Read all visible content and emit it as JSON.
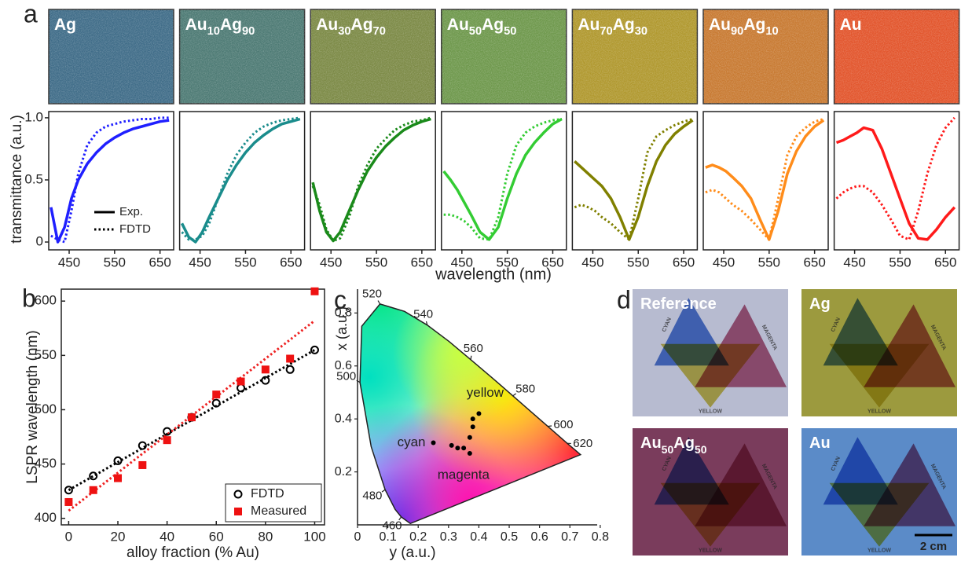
{
  "panel_labels": [
    "a",
    "b",
    "c",
    "d"
  ],
  "swatches": [
    {
      "label": "Ag",
      "color": "#3f6c88"
    },
    {
      "label": "Au10Ag90",
      "color": "#4d7a74"
    },
    {
      "label": "Au30Ag70",
      "color": "#7c8a46"
    },
    {
      "label": "Au50Ag50",
      "color": "#6e984c"
    },
    {
      "label": "Au70Ag30",
      "color": "#b0982e"
    },
    {
      "label": "Au90Ag10",
      "color": "#c87a32"
    },
    {
      "label": "Au",
      "color": "#e2552c"
    }
  ],
  "chart_data": [
    {
      "type": "line",
      "x": [
        410,
        425,
        440,
        455,
        470,
        490,
        510,
        530,
        550,
        570,
        590,
        610,
        630,
        650,
        670
      ],
      "xlim": [
        405,
        680
      ],
      "xticks": [
        450,
        550,
        650
      ],
      "ylim": [
        -0.063,
        1.05
      ],
      "yticks": [
        0,
        0.5,
        {
          "value": 1,
          "label": "1.0"
        }
      ],
      "legend": "lower right",
      "xlabel": "wavelength (nm)",
      "ylabel": "transmittance (a.u.)",
      "series": [
        {
          "name": "Exp.",
          "color": "#1f1fff",
          "style": "solid",
          "values": [
            0.28,
            0.0,
            0.12,
            0.35,
            0.5,
            0.63,
            0.72,
            0.79,
            0.84,
            0.88,
            0.91,
            0.93,
            0.95,
            0.97,
            0.98
          ]
        },
        {
          "name": "FDTD",
          "color": "#1f1fff",
          "style": "dotted",
          "values": [
            0.05,
            0.02,
            0.0,
            0.25,
            0.55,
            0.78,
            0.88,
            0.93,
            0.95,
            0.97,
            0.98,
            0.99,
            0.99,
            1.0,
            1.0
          ]
        }
      ]
    },
    {
      "type": "line",
      "x": [
        410,
        425,
        440,
        455,
        470,
        490,
        510,
        530,
        550,
        570,
        590,
        610,
        630,
        650,
        670
      ],
      "xlim": [
        405,
        680
      ],
      "xticks": [
        450,
        550,
        650
      ],
      "ylim": [
        -0.063,
        1.05
      ],
      "series": [
        {
          "color": "#1a8c8c",
          "style": "solid",
          "values": [
            0.15,
            0.04,
            0.0,
            0.08,
            0.2,
            0.35,
            0.5,
            0.62,
            0.72,
            0.8,
            0.86,
            0.91,
            0.95,
            0.97,
            0.99
          ]
        },
        {
          "color": "#1a8c8c",
          "style": "dotted",
          "values": [
            0.08,
            0.02,
            0.02,
            0.05,
            0.15,
            0.35,
            0.55,
            0.7,
            0.8,
            0.88,
            0.93,
            0.96,
            0.98,
            0.99,
            1.0
          ]
        }
      ]
    },
    {
      "type": "line",
      "x": [
        410,
        425,
        440,
        455,
        470,
        490,
        510,
        530,
        550,
        570,
        590,
        610,
        630,
        650,
        670
      ],
      "xlim": [
        405,
        680
      ],
      "xticks": [
        450,
        550,
        650
      ],
      "ylim": [
        -0.063,
        1.05
      ],
      "series": [
        {
          "color": "#1a8a1a",
          "style": "solid",
          "values": [
            0.48,
            0.25,
            0.08,
            0.01,
            0.08,
            0.25,
            0.42,
            0.57,
            0.68,
            0.77,
            0.84,
            0.9,
            0.94,
            0.97,
            0.99
          ]
        },
        {
          "color": "#1a8a1a",
          "style": "dotted",
          "values": [
            0.45,
            0.3,
            0.1,
            0.01,
            0.03,
            0.2,
            0.45,
            0.62,
            0.75,
            0.83,
            0.9,
            0.94,
            0.97,
            0.98,
            1.0
          ]
        }
      ]
    },
    {
      "type": "line",
      "x": [
        410,
        425,
        440,
        455,
        470,
        490,
        510,
        530,
        550,
        570,
        590,
        610,
        630,
        650,
        670
      ],
      "xlim": [
        405,
        680
      ],
      "xticks": [
        450,
        550,
        650
      ],
      "ylim": [
        -0.063,
        1.05
      ],
      "series": [
        {
          "color": "#33cc33",
          "style": "solid",
          "values": [
            0.57,
            0.5,
            0.42,
            0.32,
            0.22,
            0.08,
            0.02,
            0.12,
            0.35,
            0.55,
            0.7,
            0.8,
            0.88,
            0.95,
            0.99
          ]
        },
        {
          "color": "#33cc33",
          "style": "dotted",
          "values": [
            0.22,
            0.22,
            0.2,
            0.17,
            0.12,
            0.03,
            0.02,
            0.2,
            0.55,
            0.78,
            0.88,
            0.93,
            0.96,
            0.98,
            0.99
          ]
        }
      ]
    },
    {
      "type": "line",
      "x": [
        410,
        425,
        440,
        455,
        470,
        490,
        510,
        530,
        550,
        570,
        590,
        610,
        630,
        650,
        670
      ],
      "xlim": [
        405,
        680
      ],
      "xticks": [
        450,
        550,
        650
      ],
      "ylim": [
        -0.063,
        1.05
      ],
      "series": [
        {
          "color": "#808000",
          "style": "solid",
          "values": [
            0.65,
            0.6,
            0.55,
            0.5,
            0.45,
            0.35,
            0.2,
            0.02,
            0.2,
            0.45,
            0.65,
            0.78,
            0.87,
            0.93,
            0.98
          ]
        },
        {
          "color": "#808000",
          "style": "dotted",
          "values": [
            0.28,
            0.3,
            0.28,
            0.25,
            0.2,
            0.15,
            0.08,
            0.02,
            0.35,
            0.72,
            0.85,
            0.9,
            0.94,
            0.97,
            0.99
          ]
        }
      ]
    },
    {
      "type": "line",
      "x": [
        410,
        425,
        440,
        455,
        470,
        490,
        510,
        530,
        550,
        570,
        590,
        610,
        630,
        650,
        670
      ],
      "xlim": [
        405,
        680
      ],
      "xticks": [
        450,
        550,
        650
      ],
      "ylim": [
        -0.063,
        1.05
      ],
      "series": [
        {
          "color": "#ff8c1a",
          "style": "solid",
          "values": [
            0.6,
            0.62,
            0.6,
            0.57,
            0.52,
            0.45,
            0.35,
            0.18,
            0.02,
            0.25,
            0.55,
            0.73,
            0.85,
            0.93,
            0.98
          ]
        },
        {
          "color": "#ff8c1a",
          "style": "dotted",
          "values": [
            0.4,
            0.42,
            0.4,
            0.35,
            0.3,
            0.25,
            0.18,
            0.1,
            0.02,
            0.35,
            0.7,
            0.85,
            0.92,
            0.97,
            0.99
          ]
        }
      ]
    },
    {
      "type": "line",
      "x": [
        410,
        425,
        440,
        455,
        470,
        490,
        510,
        530,
        550,
        570,
        590,
        610,
        630,
        650,
        670
      ],
      "xlim": [
        405,
        680
      ],
      "xticks": [
        450,
        550,
        650
      ],
      "ylim": [
        -0.063,
        1.05
      ],
      "series": [
        {
          "color": "#ff1a1a",
          "style": "solid",
          "values": [
            0.8,
            0.82,
            0.85,
            0.88,
            0.92,
            0.9,
            0.75,
            0.55,
            0.35,
            0.15,
            0.03,
            0.02,
            0.1,
            0.2,
            0.28
          ]
        },
        {
          "color": "#ff1a1a",
          "style": "dotted",
          "values": [
            0.35,
            0.4,
            0.43,
            0.45,
            0.45,
            0.4,
            0.3,
            0.18,
            0.05,
            0.02,
            0.25,
            0.55,
            0.78,
            0.92,
            1.0
          ]
        }
      ]
    },
    {
      "type": "scatter",
      "xlabel": "alloy fraction (% Au)",
      "ylabel": "LSPR wavelength (nm)",
      "xlim": [
        -3,
        104
      ],
      "xticks": [
        0,
        20,
        40,
        60,
        80,
        100
      ],
      "ylim": [
        394,
        611
      ],
      "yticks": [
        400,
        450,
        500,
        550,
        600
      ],
      "legend": "lower right",
      "x": [
        0,
        10,
        20,
        30,
        40,
        50,
        60,
        70,
        80,
        90,
        100
      ],
      "series": [
        {
          "name": "FDTD",
          "color": "#000000",
          "marker": "open-circle",
          "values": [
            426,
            439,
            453,
            467,
            480,
            493,
            506,
            520,
            527,
            537,
            555
          ]
        },
        {
          "name": "Measured",
          "color": "#ee1111",
          "marker": "square",
          "values": [
            415,
            426,
            437,
            449,
            472,
            493,
            514,
            526,
            537,
            547,
            609
          ]
        }
      ],
      "fits": [
        {
          "color": "#000000",
          "x": [
            0,
            100
          ],
          "values": [
            426,
            555
          ]
        },
        {
          "color": "#ee2222",
          "x": [
            0,
            100
          ],
          "values": [
            407,
            582
          ]
        }
      ]
    },
    {
      "type": "chromaticity",
      "xlabel": "y (a.u.)",
      "ylabel": "x (a.u.)",
      "xlim": [
        0,
        0.79
      ],
      "xticks": [
        0,
        0.1,
        0.2,
        0.3,
        0.4,
        0.5,
        0.6,
        0.7,
        0.8
      ],
      "ylim": [
        0,
        0.89
      ],
      "yticks": [
        0.2,
        0.4,
        0.6,
        0.8
      ],
      "locus": {
        "x": [
          0.174,
          0.144,
          0.124,
          0.091,
          0.045,
          0.008,
          0.014,
          0.074,
          0.155,
          0.23,
          0.302,
          0.373,
          0.444,
          0.512,
          0.575,
          0.627,
          0.691,
          0.719,
          0.735
        ],
        "y": [
          0.005,
          0.03,
          0.058,
          0.133,
          0.295,
          0.538,
          0.75,
          0.834,
          0.806,
          0.754,
          0.692,
          0.624,
          0.555,
          0.487,
          0.424,
          0.372,
          0.308,
          0.281,
          0.265
        ]
      },
      "wavelength_labels": [
        {
          "value": 460,
          "x": 0.144,
          "y": 0.03
        },
        {
          "value": 480,
          "x": 0.091,
          "y": 0.133
        },
        {
          "value": 500,
          "x": 0.008,
          "y": 0.538
        },
        {
          "value": 520,
          "x": 0.074,
          "y": 0.834
        },
        {
          "value": 540,
          "x": 0.23,
          "y": 0.754
        },
        {
          "value": 560,
          "x": 0.373,
          "y": 0.624
        },
        {
          "value": 580,
          "x": 0.512,
          "y": 0.487
        },
        {
          "value": 600,
          "x": 0.627,
          "y": 0.372
        },
        {
          "value": 620,
          "x": 0.691,
          "y": 0.308
        }
      ],
      "series": [
        {
          "color": "#000000",
          "x": [
            0.25,
            0.31,
            0.33,
            0.35,
            0.37,
            0.37,
            0.38,
            0.38,
            0.4
          ],
          "values": [
            0.31,
            0.3,
            0.29,
            0.29,
            0.27,
            0.33,
            0.37,
            0.4,
            0.42
          ]
        }
      ],
      "annotations": [
        "cyan",
        "yellow",
        "magenta"
      ]
    }
  ],
  "photos": [
    {
      "label": "Reference",
      "background": "#b7bbd0"
    },
    {
      "label": "Ag",
      "background": "#9c9a3e"
    },
    {
      "label": "Au50Ag50",
      "background": "#7a3c5c"
    },
    {
      "label": "Au",
      "background": "#5b8bc8"
    }
  ],
  "photo_texts": {
    "triangles": [
      "CYAN",
      "MAGENTA",
      "YELLOW"
    ],
    "scale_bar": "2 cm"
  }
}
